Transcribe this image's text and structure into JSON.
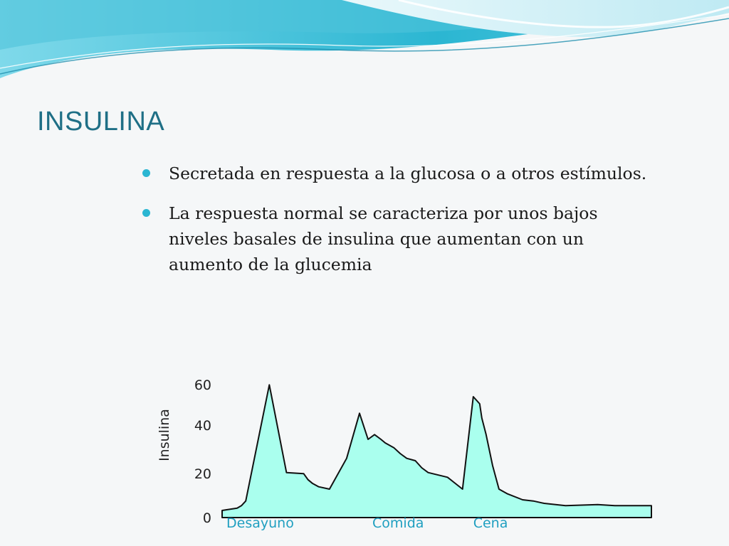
{
  "slide": {
    "title": "INSULINA",
    "bullets": [
      "Secretada en respuesta a la glucosa o a otros estímulos.",
      "La respuesta normal se caracteriza por unos bajos niveles basales de insulina que aumentan con un aumento de la glucemia"
    ],
    "accent_color": "#2bb6d2",
    "title_color": "#1f6f86"
  },
  "chart_data": {
    "type": "area",
    "ylabel": "Insulina",
    "ytick_labels": [
      "0",
      "20",
      "40",
      "60"
    ],
    "ylim": [
      0,
      60
    ],
    "grid": false,
    "legend": "none",
    "meal_labels": [
      {
        "label": "Desayuno",
        "x": 0.0
      },
      {
        "label": "Comida",
        "x": 6.8
      },
      {
        "label": "Cena",
        "x": 11.5
      }
    ],
    "fill_color": "#aaffee",
    "series": [
      {
        "x": [
          0.0,
          0.7,
          0.9,
          1.1,
          2.2,
          3.0,
          3.8,
          4.0,
          4.2,
          4.5,
          5.0,
          5.8,
          6.4,
          6.8,
          7.1,
          7.4,
          7.6,
          8.0,
          8.3,
          8.6,
          9.0,
          9.3,
          9.6,
          10.5,
          11.2,
          11.7,
          12.0,
          12.1,
          12.3,
          12.6,
          12.9,
          13.3,
          14.0,
          14.5,
          15.0,
          16.0,
          17.5,
          18.3,
          19.0,
          20.0
        ],
        "y": [
          3,
          4,
          5,
          7,
          56,
          19,
          18.5,
          16,
          14.5,
          13,
          12,
          25,
          44,
          33,
          35,
          33,
          31.5,
          29.5,
          27,
          25,
          24,
          21,
          19,
          17,
          12,
          51,
          48,
          42,
          35,
          22,
          12,
          10,
          7.5,
          7,
          6,
          5,
          5.5,
          5,
          5,
          5
        ]
      }
    ]
  }
}
